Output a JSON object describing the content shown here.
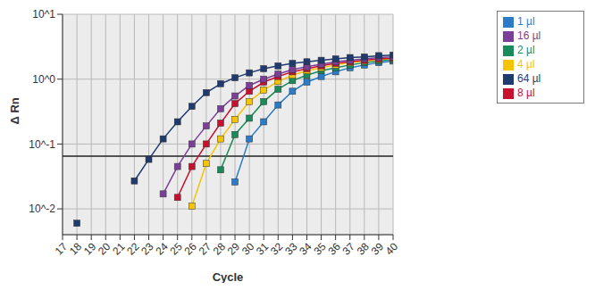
{
  "chart_data": {
    "type": "line",
    "x_label": "Cycle",
    "y_label": "Δ Rn",
    "log": "y",
    "grid": true,
    "legend": "top-right",
    "marker": "square",
    "x": [
      18,
      19,
      20,
      21,
      22,
      23,
      24,
      25,
      26,
      27,
      28,
      29,
      30,
      31,
      32,
      33,
      34,
      35,
      36,
      37,
      38,
      39,
      40
    ],
    "xlim": [
      17,
      40
    ],
    "xticks": [
      17,
      18,
      19,
      20,
      21,
      22,
      23,
      24,
      25,
      26,
      27,
      28,
      29,
      30,
      31,
      32,
      33,
      34,
      35,
      36,
      37,
      38,
      39,
      40
    ],
    "ylim": [
      0.004,
      10
    ],
    "yticks": [
      {
        "value": 0.01,
        "label": "10^-2"
      },
      {
        "value": 0.1,
        "label": "10^-1"
      },
      {
        "value": 1,
        "label": "10^0"
      },
      {
        "value": 10,
        "label": "10^1"
      }
    ],
    "threshold": 0.065,
    "series": [
      {
        "name": "1 µl",
        "color": "#2c7bc8",
        "values": [
          null,
          null,
          null,
          null,
          null,
          null,
          null,
          null,
          null,
          null,
          null,
          0.026,
          0.12,
          0.22,
          0.4,
          0.65,
          0.9,
          1.1,
          1.3,
          1.5,
          1.65,
          1.8,
          1.9
        ]
      },
      {
        "name": "2 µl",
        "color": "#1a8a5a",
        "values": [
          null,
          null,
          null,
          null,
          null,
          null,
          null,
          null,
          null,
          null,
          0.04,
          0.14,
          0.25,
          0.45,
          0.7,
          0.95,
          1.15,
          1.35,
          1.5,
          1.65,
          1.8,
          1.9,
          2.0
        ]
      },
      {
        "name": "4 µl",
        "color": "#f5c400",
        "values": [
          null,
          null,
          null,
          null,
          null,
          null,
          null,
          null,
          0.011,
          0.05,
          0.12,
          0.24,
          0.45,
          0.68,
          0.92,
          1.15,
          1.35,
          1.5,
          1.65,
          1.8,
          1.9,
          2.0,
          2.1
        ]
      },
      {
        "name": "8 µl",
        "color": "#c8102e",
        "values": [
          null,
          null,
          null,
          null,
          null,
          null,
          null,
          0.015,
          0.045,
          0.1,
          0.21,
          0.42,
          0.65,
          0.9,
          1.1,
          1.3,
          1.45,
          1.6,
          1.75,
          1.85,
          1.95,
          2.05,
          2.1
        ]
      },
      {
        "name": "16 µl",
        "color": "#7b3f98",
        "values": [
          null,
          null,
          null,
          null,
          null,
          null,
          0.017,
          0.045,
          0.1,
          0.19,
          0.35,
          0.55,
          0.8,
          1.0,
          1.2,
          1.4,
          1.55,
          1.7,
          1.85,
          1.95,
          2.05,
          2.15,
          2.2
        ]
      },
      {
        "name": "64 µl",
        "color": "#1f3a6e",
        "values": [
          0.006,
          null,
          null,
          null,
          0.027,
          0.058,
          0.12,
          0.22,
          0.38,
          0.62,
          0.85,
          1.05,
          1.25,
          1.45,
          1.6,
          1.75,
          1.85,
          1.95,
          2.05,
          2.15,
          2.2,
          2.3,
          2.35
        ]
      }
    ]
  }
}
